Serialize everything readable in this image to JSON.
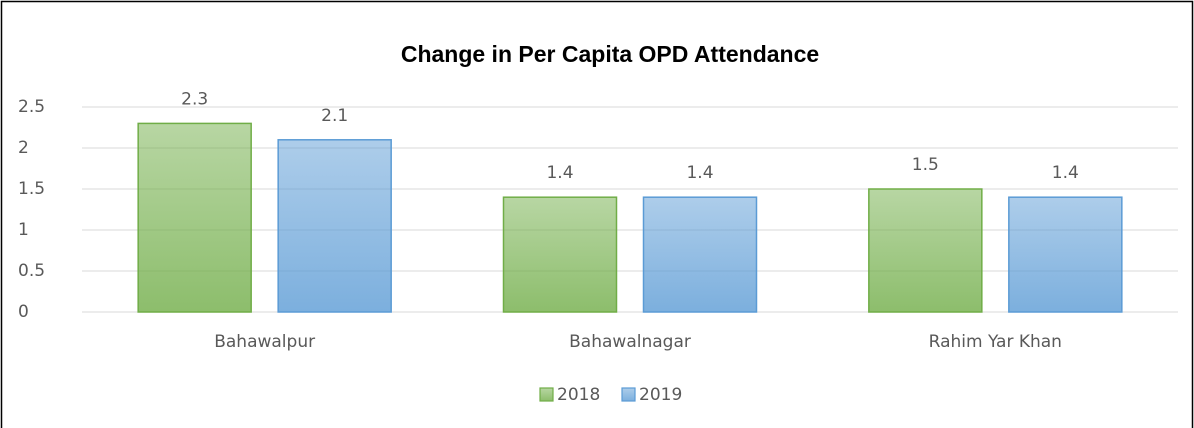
{
  "chart_data": {
    "type": "bar",
    "title": "Change in Per Capita OPD Attendance",
    "categories": [
      "Bahawalpur",
      "Bahawalnagar",
      "Rahim Yar Khan"
    ],
    "series": [
      {
        "name": "2018",
        "color": "#70ad47",
        "values": [
          2.3,
          1.4,
          1.5
        ]
      },
      {
        "name": "2019",
        "color": "#5b9bd5",
        "values": [
          2.1,
          1.4,
          1.4
        ]
      }
    ],
    "ylim": [
      0,
      2.5
    ],
    "yticks": [
      0,
      0.5,
      1,
      1.5,
      2,
      2.5
    ],
    "grid": true,
    "legend": "bottom"
  }
}
